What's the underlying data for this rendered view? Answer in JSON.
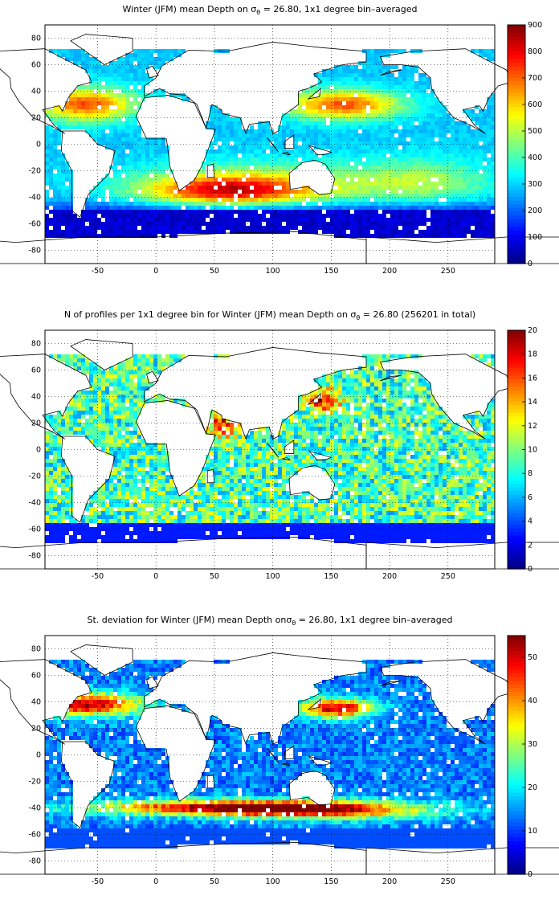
{
  "panels": [
    {
      "id": "mean",
      "title_pre": "Winter (JFM) mean Depth on σ",
      "title_sub": "θ",
      "title_post": " = 26.80, 1x1 degree bin–averaged",
      "colorbar_ticks": [
        "0",
        "100",
        "200",
        "300",
        "400",
        "500",
        "600",
        "700",
        "800",
        "900"
      ]
    },
    {
      "id": "count",
      "title_pre": "N of profiles per 1x1 degree bin for Winter (JFM) mean Depth on σ",
      "title_sub": "θ",
      "title_post": " = 26.80 (256201 in total)",
      "colorbar_ticks": [
        "0",
        "2",
        "4",
        "6",
        "8",
        "10",
        "12",
        "14",
        "16",
        "18",
        "20"
      ]
    },
    {
      "id": "std",
      "title_pre": "St. deviation for Winter (JFM) mean Depth onσ",
      "title_sub": "θ",
      "title_post": " = 26.80, 1x1 degree bin–averaged",
      "colorbar_ticks": [
        "0",
        "10",
        "20",
        "30",
        "40",
        "50"
      ]
    }
  ],
  "x_ticks": [
    "-50",
    "0",
    "50",
    "100",
    "150",
    "200",
    "250"
  ],
  "y_ticks": [
    "80",
    "60",
    "40",
    "20",
    "0",
    "-20",
    "-40",
    "-60",
    "-80"
  ],
  "colormap": "jet",
  "land_color": "#ffffff",
  "coast_color": "#000000"
}
